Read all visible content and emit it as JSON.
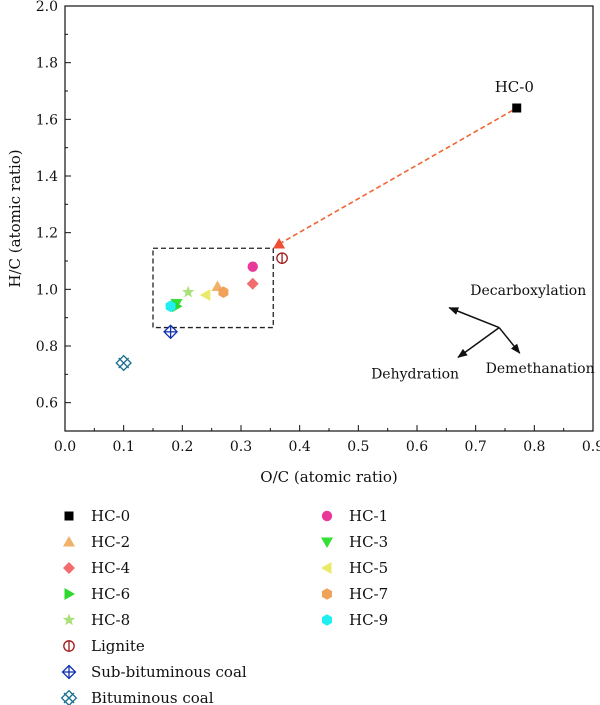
{
  "chart_data": {
    "type": "scatter",
    "title": "",
    "xlabel": "O/C (atomic ratio)",
    "ylabel": "H/C (atomic ratio)",
    "xlim": [
      0.0,
      0.9
    ],
    "ylim": [
      0.5,
      2.0
    ],
    "xticks": [
      "0.0",
      "0.1",
      "0.2",
      "0.3",
      "0.4",
      "0.5",
      "0.6",
      "0.7",
      "0.8",
      "0.9"
    ],
    "yticks": [
      "0.6",
      "0.8",
      "1.0",
      "1.2",
      "1.4",
      "1.6",
      "1.8",
      "2.0"
    ],
    "grid": false,
    "legend_placement": "below",
    "series": [
      {
        "name": "HC-0",
        "marker": "square",
        "color": "#000000",
        "x": 0.77,
        "y": 1.64
      },
      {
        "name": "HC-1",
        "marker": "circle",
        "color": "#e8399a",
        "x": 0.32,
        "y": 1.08
      },
      {
        "name": "HC-2",
        "marker": "triangle-up",
        "color": "#f0b26a",
        "x": 0.26,
        "y": 1.01
      },
      {
        "name": "HC-3",
        "marker": "triangle-down",
        "color": "#35e035",
        "x": 0.19,
        "y": 0.95
      },
      {
        "name": "HC-4",
        "marker": "diamond",
        "color": "#f26d6d",
        "x": 0.32,
        "y": 1.02
      },
      {
        "name": "HC-5",
        "marker": "triangle-left",
        "color": "#eaea6a",
        "x": 0.24,
        "y": 0.98
      },
      {
        "name": "HC-6",
        "marker": "triangle-right",
        "color": "#2ed82e",
        "x": 0.19,
        "y": 0.94
      },
      {
        "name": "HC-7",
        "marker": "hexagon",
        "color": "#f0a15a",
        "x": 0.27,
        "y": 0.99
      },
      {
        "name": "HC-8",
        "marker": "star",
        "color": "#a8e07a",
        "x": 0.21,
        "y": 0.99
      },
      {
        "name": "HC-9",
        "marker": "hexagon",
        "color": "#20eef0",
        "x": 0.18,
        "y": 0.94
      },
      {
        "name": "Lignite",
        "marker": "circle-bar",
        "color": "#a01818",
        "x": 0.37,
        "y": 1.11
      },
      {
        "name": "Sub-bituminous coal",
        "marker": "diamond-plus",
        "color": "#1030b0",
        "x": 0.18,
        "y": 0.85
      },
      {
        "name": "Bituminous coal",
        "marker": "square-x",
        "color": "#1a7090",
        "x": 0.1,
        "y": 0.74
      }
    ],
    "extra_marks": [
      {
        "marker": "triangle-up",
        "color": "#f04e35",
        "x": 0.365,
        "y": 1.16
      }
    ],
    "trend_line": {
      "from": [
        0.365,
        1.16
      ],
      "to": [
        0.77,
        1.64
      ],
      "color": "#ee6633",
      "style": "dashed"
    },
    "region_box": {
      "x0": 0.15,
      "x1": 0.355,
      "y0": 0.865,
      "y1": 1.145,
      "style": "dashed"
    },
    "annotations": {
      "point_label": "HC-0",
      "arrows": {
        "origin": [
          0.74,
          0.865
        ],
        "items": [
          {
            "label": "Decarboxylation",
            "to": [
              0.655,
              0.935
            ]
          },
          {
            "label": "Dehydration",
            "to": [
              0.67,
              0.76
            ]
          },
          {
            "label": "Demethanation",
            "to": [
              0.775,
              0.775
            ]
          }
        ]
      }
    }
  }
}
